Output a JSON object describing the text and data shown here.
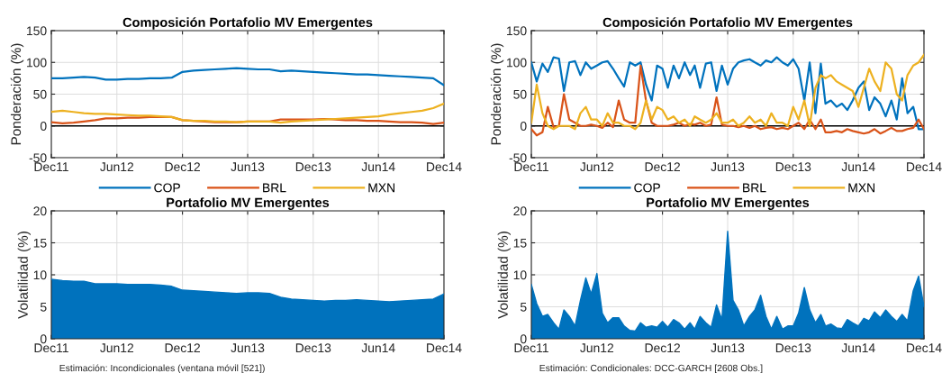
{
  "chart_data": [
    {
      "type": "line",
      "title": "Composición Portafolio MV Emergentes",
      "ylabel": "Ponderación (%)",
      "x": [
        "2011-12",
        "2012-01",
        "2012-02",
        "2012-03",
        "2012-04",
        "2012-05",
        "2012-06",
        "2012-07",
        "2012-08",
        "2012-09",
        "2012-10",
        "2012-11",
        "2012-12",
        "2013-01",
        "2013-02",
        "2013-03",
        "2013-04",
        "2013-05",
        "2013-06",
        "2013-07",
        "2013-08",
        "2013-09",
        "2013-10",
        "2013-11",
        "2013-12",
        "2014-01",
        "2014-02",
        "2014-03",
        "2014-04",
        "2014-05",
        "2014-06",
        "2014-07",
        "2014-08",
        "2014-09",
        "2014-10",
        "2014-11",
        "2014-12"
      ],
      "series": [
        {
          "name": "COP",
          "color": "#0072bd",
          "values": [
            75,
            75,
            76,
            77,
            76,
            73,
            73,
            74,
            74,
            75,
            75,
            76,
            85,
            87,
            88,
            89,
            90,
            91,
            90,
            89,
            89,
            86,
            87,
            86,
            85,
            84,
            83,
            82,
            81,
            81,
            80,
            79,
            78,
            77,
            76,
            75,
            64
          ]
        },
        {
          "name": "BRL",
          "color": "#d95319",
          "values": [
            6,
            4,
            5,
            7,
            9,
            12,
            12,
            13,
            13,
            14,
            14,
            14,
            9,
            8,
            7,
            6,
            6,
            6,
            7,
            7,
            7,
            10,
            10,
            10,
            10,
            11,
            10,
            9,
            9,
            8,
            8,
            7,
            6,
            6,
            5,
            3,
            5
          ]
        },
        {
          "name": "MXN",
          "color": "#edb120",
          "values": [
            22,
            24,
            22,
            20,
            19,
            19,
            18,
            17,
            16,
            16,
            15,
            14,
            9,
            8,
            8,
            7,
            7,
            6,
            7,
            7,
            7,
            5,
            7,
            8,
            9,
            10,
            11,
            12,
            13,
            14,
            15,
            18,
            20,
            22,
            24,
            28,
            35
          ]
        }
      ],
      "xlim": [
        "2011-12-01",
        "2014-12-01"
      ],
      "xticks": [
        {
          "value": "2011-12-01",
          "label": "Dec11"
        },
        {
          "value": "2012-06-01",
          "label": "Jun12"
        },
        {
          "value": "2012-12-01",
          "label": "Dec12"
        },
        {
          "value": "2013-06-01",
          "label": "Jun13"
        },
        {
          "value": "2013-12-01",
          "label": "Dec13"
        },
        {
          "value": "2014-06-01",
          "label": "Jun14"
        },
        {
          "value": "2014-12-01",
          "label": "Dec14"
        }
      ],
      "ylim": [
        -50,
        150
      ],
      "yticks": [
        -50,
        0,
        50,
        100,
        150
      ],
      "grid": true,
      "legend": "bottom",
      "ref_lines": [
        {
          "axis": "y",
          "value": 0,
          "color": "#000000"
        }
      ]
    },
    {
      "type": "line",
      "title": "Composición Portafolio MV Emergentes",
      "ylabel": "Ponderación (%)",
      "x": [
        "2011-12-01",
        "2011-12-16",
        "2012-01-01",
        "2012-01-16",
        "2012-02-01",
        "2012-02-16",
        "2012-03-01",
        "2012-03-16",
        "2012-04-01",
        "2012-04-16",
        "2012-05-01",
        "2012-05-16",
        "2012-06-01",
        "2012-06-16",
        "2012-07-01",
        "2012-07-16",
        "2012-08-01",
        "2012-08-16",
        "2012-09-01",
        "2012-09-16",
        "2012-10-01",
        "2012-10-16",
        "2012-11-01",
        "2012-11-16",
        "2012-12-01",
        "2012-12-16",
        "2013-01-01",
        "2013-01-16",
        "2013-02-01",
        "2013-02-16",
        "2013-03-01",
        "2013-03-16",
        "2013-04-01",
        "2013-04-16",
        "2013-05-01",
        "2013-05-16",
        "2013-06-01",
        "2013-06-16",
        "2013-07-01",
        "2013-07-16",
        "2013-08-01",
        "2013-08-16",
        "2013-09-01",
        "2013-09-16",
        "2013-10-01",
        "2013-10-16",
        "2013-11-01",
        "2013-11-16",
        "2013-12-01",
        "2013-12-16",
        "2014-01-01",
        "2014-01-16",
        "2014-02-01",
        "2014-02-16",
        "2014-03-01",
        "2014-03-16",
        "2014-04-01",
        "2014-04-16",
        "2014-05-01",
        "2014-05-16",
        "2014-06-01",
        "2014-06-16",
        "2014-07-01",
        "2014-07-16",
        "2014-08-01",
        "2014-08-16",
        "2014-09-01",
        "2014-09-16",
        "2014-10-01",
        "2014-10-16",
        "2014-11-01",
        "2014-11-16",
        "2014-12-01"
      ],
      "series": [
        {
          "name": "COP",
          "color": "#0072bd",
          "values": [
            100,
            70,
            98,
            85,
            108,
            106,
            55,
            100,
            102,
            80,
            100,
            90,
            95,
            100,
            102,
            90,
            75,
            62,
            100,
            95,
            100,
            65,
            40,
            95,
            90,
            60,
            95,
            75,
            100,
            80,
            95,
            60,
            98,
            100,
            55,
            95,
            65,
            90,
            100,
            103,
            105,
            100,
            95,
            103,
            100,
            108,
            100,
            95,
            105,
            90,
            40,
            100,
            20,
            98,
            35,
            40,
            30,
            35,
            25,
            40,
            60,
            70,
            25,
            45,
            35,
            15,
            40,
            10,
            75,
            20,
            30,
            -5,
            -5
          ]
        },
        {
          "name": "BRL",
          "color": "#d95319",
          "values": [
            -5,
            -15,
            -10,
            30,
            -2,
            0,
            50,
            10,
            5,
            0,
            0,
            2,
            0,
            -3,
            5,
            -2,
            40,
            10,
            5,
            5,
            95,
            40,
            5,
            0,
            0,
            0,
            2,
            5,
            0,
            3,
            2,
            5,
            0,
            2,
            45,
            2,
            0,
            0,
            -2,
            0,
            -3,
            0,
            -5,
            -3,
            -2,
            -5,
            -3,
            -5,
            0,
            5,
            -5,
            10,
            -5,
            10,
            -10,
            -10,
            -8,
            -10,
            -5,
            -8,
            -10,
            -12,
            -10,
            -5,
            -12,
            -8,
            -3,
            -8,
            -8,
            -5,
            -3,
            10,
            -5
          ]
        },
        {
          "name": "MXN",
          "color": "#edb120",
          "values": [
            5,
            65,
            20,
            0,
            -5,
            0,
            0,
            0,
            -5,
            20,
            30,
            10,
            10,
            0,
            20,
            5,
            5,
            0,
            0,
            -5,
            5,
            40,
            10,
            30,
            25,
            10,
            15,
            5,
            10,
            0,
            15,
            10,
            5,
            10,
            20,
            5,
            5,
            10,
            0,
            5,
            15,
            5,
            10,
            0,
            20,
            5,
            5,
            0,
            30,
            10,
            40,
            0,
            60,
            80,
            75,
            80,
            70,
            65,
            60,
            55,
            30,
            60,
            90,
            70,
            55,
            100,
            90,
            50,
            40,
            80,
            95,
            100,
            112
          ]
        }
      ],
      "xlim": [
        "2011-12-01",
        "2014-12-01"
      ],
      "xticks": [
        {
          "value": "2011-12-01",
          "label": "Dec11"
        },
        {
          "value": "2012-06-01",
          "label": "Jun12"
        },
        {
          "value": "2012-12-01",
          "label": "Dec12"
        },
        {
          "value": "2013-06-01",
          "label": "Jun13"
        },
        {
          "value": "2013-12-01",
          "label": "Dec13"
        },
        {
          "value": "2014-06-01",
          "label": "Jun14"
        },
        {
          "value": "2014-12-01",
          "label": "Dec14"
        }
      ],
      "ylim": [
        -50,
        150
      ],
      "yticks": [
        -50,
        0,
        50,
        100,
        150
      ],
      "grid": true,
      "legend": "bottom",
      "ref_lines": [
        {
          "axis": "y",
          "value": 0,
          "color": "#000000"
        }
      ]
    },
    {
      "type": "area",
      "title": "Portafolio MV Emergentes",
      "ylabel": "Volatilidad (%)",
      "x": [
        "2011-12",
        "2012-01",
        "2012-02",
        "2012-03",
        "2012-04",
        "2012-05",
        "2012-06",
        "2012-07",
        "2012-08",
        "2012-09",
        "2012-10",
        "2012-11",
        "2012-12",
        "2013-01",
        "2013-02",
        "2013-03",
        "2013-04",
        "2013-05",
        "2013-06",
        "2013-07",
        "2013-08",
        "2013-09",
        "2013-10",
        "2013-11",
        "2013-12",
        "2014-01",
        "2014-02",
        "2014-03",
        "2014-04",
        "2014-05",
        "2014-06",
        "2014-07",
        "2014-08",
        "2014-09",
        "2014-10",
        "2014-11",
        "2014-12"
      ],
      "series": [
        {
          "color": "#0072bd",
          "values": [
            9.3,
            9.1,
            9.0,
            9.0,
            8.6,
            8.6,
            8.6,
            8.5,
            8.5,
            8.5,
            8.4,
            8.2,
            7.6,
            7.5,
            7.4,
            7.3,
            7.2,
            7.1,
            7.2,
            7.2,
            7.1,
            6.5,
            6.2,
            6.1,
            6.0,
            5.9,
            6.0,
            6.0,
            6.1,
            6.0,
            5.9,
            5.8,
            5.9,
            6.0,
            6.1,
            6.2,
            7.0
          ]
        }
      ],
      "xlim": [
        "2011-12-01",
        "2014-12-01"
      ],
      "xticks": [
        {
          "value": "2011-12-01",
          "label": "Dec11"
        },
        {
          "value": "2012-06-01",
          "label": "Jun12"
        },
        {
          "value": "2012-12-01",
          "label": "Dec12"
        },
        {
          "value": "2013-06-01",
          "label": "Jun13"
        },
        {
          "value": "2013-12-01",
          "label": "Dec13"
        },
        {
          "value": "2014-06-01",
          "label": "Jun14"
        },
        {
          "value": "2014-12-01",
          "label": "Dec14"
        }
      ],
      "ylim": [
        0,
        20
      ],
      "yticks": [
        0,
        5,
        10,
        15,
        20
      ],
      "grid": true,
      "annotations": [
        "Estimación: Incondicionales (ventana móvil [521])"
      ]
    },
    {
      "type": "area",
      "title": "Portafolio MV Emergentes",
      "ylabel": "Volatilidad (%)",
      "x": [
        "2011-12-01",
        "2011-12-16",
        "2012-01-01",
        "2012-01-16",
        "2012-02-01",
        "2012-02-16",
        "2012-03-01",
        "2012-03-16",
        "2012-04-01",
        "2012-04-16",
        "2012-05-01",
        "2012-05-16",
        "2012-06-01",
        "2012-06-16",
        "2012-07-01",
        "2012-07-16",
        "2012-08-01",
        "2012-08-16",
        "2012-09-01",
        "2012-09-16",
        "2012-10-01",
        "2012-10-16",
        "2012-11-01",
        "2012-11-16",
        "2012-12-01",
        "2012-12-16",
        "2013-01-01",
        "2013-01-16",
        "2013-02-01",
        "2013-02-16",
        "2013-03-01",
        "2013-03-16",
        "2013-04-01",
        "2013-04-16",
        "2013-05-01",
        "2013-05-16",
        "2013-06-01",
        "2013-06-16",
        "2013-07-01",
        "2013-07-16",
        "2013-08-01",
        "2013-08-16",
        "2013-09-01",
        "2013-09-16",
        "2013-10-01",
        "2013-10-16",
        "2013-11-01",
        "2013-11-16",
        "2013-12-01",
        "2013-12-16",
        "2014-01-01",
        "2014-01-16",
        "2014-02-01",
        "2014-02-16",
        "2014-03-01",
        "2014-03-16",
        "2014-04-01",
        "2014-04-16",
        "2014-05-01",
        "2014-05-16",
        "2014-06-01",
        "2014-06-16",
        "2014-07-01",
        "2014-07-16",
        "2014-08-01",
        "2014-08-16",
        "2014-09-01",
        "2014-09-16",
        "2014-10-01",
        "2014-10-16",
        "2014-11-01",
        "2014-11-16",
        "2014-12-01"
      ],
      "series": [
        {
          "color": "#0072bd",
          "values": [
            8.5,
            5.5,
            3.5,
            3.8,
            2.5,
            1.5,
            4.5,
            3.5,
            2.0,
            6.0,
            9.5,
            7.0,
            10.2,
            4.0,
            2.5,
            3.3,
            3.3,
            2.0,
            1.3,
            1.2,
            2.5,
            1.8,
            2.0,
            1.8,
            2.7,
            1.8,
            3.0,
            2.5,
            1.5,
            2.5,
            1.5,
            3.5,
            2.5,
            1.8,
            5.3,
            3.0,
            16.8,
            6.0,
            4.5,
            2.0,
            3.5,
            4.5,
            6.8,
            3.5,
            1.5,
            3.5,
            1.5,
            2.0,
            2.0,
            4.0,
            8.0,
            4.5,
            2.5,
            3.8,
            2.0,
            2.3,
            1.7,
            1.6,
            3.0,
            2.5,
            2.0,
            3.2,
            2.8,
            4.2,
            3.3,
            4.5,
            3.5,
            2.7,
            3.8,
            2.8,
            7.5,
            9.8,
            5.0
          ]
        }
      ],
      "xlim": [
        "2011-12-01",
        "2014-12-01"
      ],
      "xticks": [
        {
          "value": "2011-12-01",
          "label": "Dec11"
        },
        {
          "value": "2012-06-01",
          "label": "Jun12"
        },
        {
          "value": "2012-12-01",
          "label": "Dec12"
        },
        {
          "value": "2013-06-01",
          "label": "Jun13"
        },
        {
          "value": "2013-12-01",
          "label": "Dec13"
        },
        {
          "value": "2014-06-01",
          "label": "Jun14"
        },
        {
          "value": "2014-12-01",
          "label": "Dec14"
        }
      ],
      "ylim": [
        0,
        20
      ],
      "yticks": [
        0,
        5,
        10,
        15,
        20
      ],
      "grid": true,
      "annotations": [
        "Estimación: Condicionales: DCC-GARCH [2608 Obs.]"
      ]
    }
  ]
}
